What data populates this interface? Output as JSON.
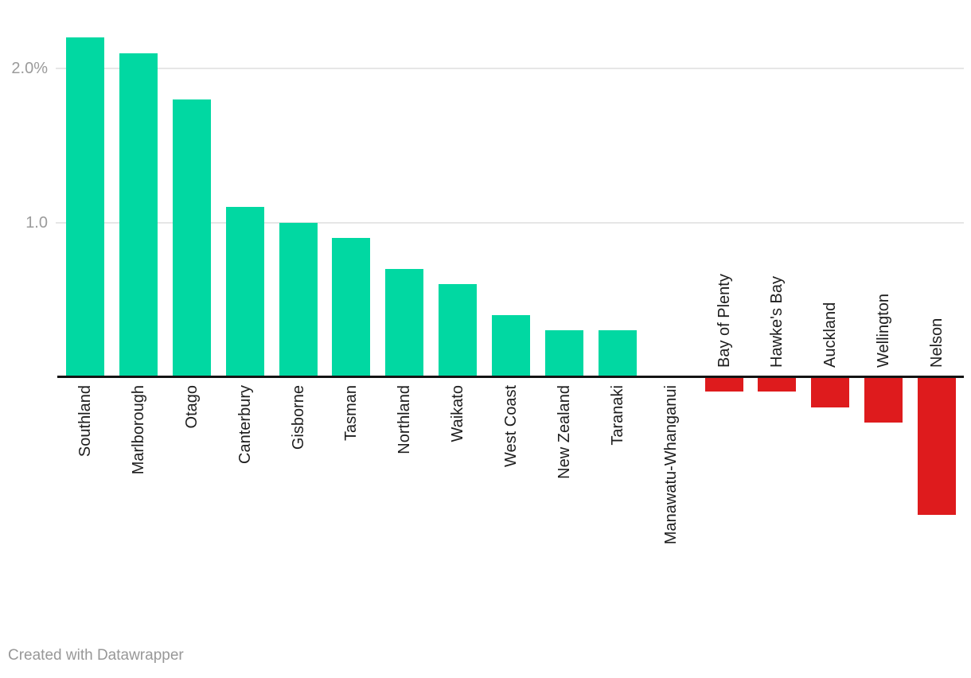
{
  "chart_data": {
    "type": "bar",
    "categories": [
      "Southland",
      "Marlborough",
      "Otago",
      "Canterbury",
      "Gisborne",
      "Tasman",
      "Northland",
      "Waikato",
      "West Coast",
      "New Zealand",
      "Taranaki",
      "Manawatu-Whanganui",
      "Bay of Plenty",
      "Hawke's Bay",
      "Auckland",
      "Wellington",
      "Nelson"
    ],
    "values": [
      2.2,
      2.1,
      1.8,
      1.1,
      1.0,
      0.9,
      0.7,
      0.6,
      0.4,
      0.3,
      0.3,
      0.0,
      -0.1,
      -0.1,
      -0.2,
      -0.3,
      -0.9
    ],
    "title": "",
    "xlabel": "",
    "ylabel": "",
    "ylim": [
      -1.0,
      2.3
    ],
    "yticks": [
      {
        "value": 2.0,
        "label": "2.0%"
      },
      {
        "value": 1.0,
        "label": "1.0"
      }
    ],
    "grid": true,
    "legend": "none",
    "positive_color": "#01d8a2",
    "negative_color": "#de1b1d",
    "axis_color": "#141414",
    "gridline_color": "#e6e6e6",
    "tick_label_color": "#9b9b9b",
    "bar_label_color": "#1d1d1d"
  },
  "footer": {
    "credit": "Created with Datawrapper"
  }
}
